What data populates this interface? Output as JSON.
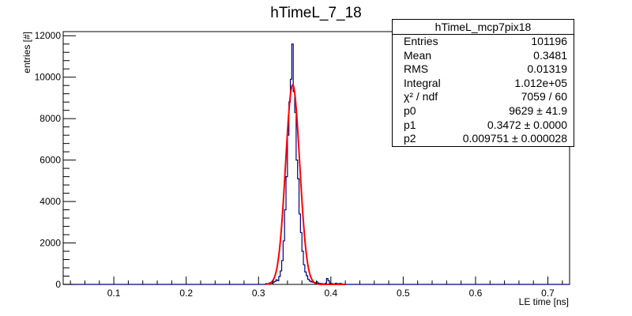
{
  "chart_data": {
    "type": "histogram",
    "title": "hTimeL_7_18",
    "xlabel": "LE time [ns]",
    "ylabel": "entries [#]",
    "xlim": [
      0.03,
      0.73
    ],
    "ylim": [
      0,
      12200
    ],
    "xticks": [
      0.1,
      0.2,
      0.3,
      0.4,
      0.5,
      0.6,
      0.7
    ],
    "xtick_labels": [
      "0.1",
      "0.2",
      "0.3",
      "0.4",
      "0.5",
      "0.6",
      "0.7"
    ],
    "yticks": [
      0,
      2000,
      4000,
      6000,
      8000,
      10000,
      12000
    ],
    "ytick_labels": [
      "0",
      "2000",
      "4000",
      "6000",
      "8000",
      "10000",
      "12000"
    ],
    "histogram": {
      "color": "#000080",
      "bins": [
        [
          0.31,
          0.312,
          40
        ],
        [
          0.312,
          0.314,
          30
        ],
        [
          0.314,
          0.316,
          60
        ],
        [
          0.316,
          0.318,
          90
        ],
        [
          0.318,
          0.32,
          60
        ],
        [
          0.32,
          0.322,
          110
        ],
        [
          0.322,
          0.324,
          140
        ],
        [
          0.324,
          0.326,
          220
        ],
        [
          0.326,
          0.328,
          180
        ],
        [
          0.328,
          0.33,
          380
        ],
        [
          0.33,
          0.332,
          650
        ],
        [
          0.332,
          0.334,
          1150
        ],
        [
          0.334,
          0.336,
          2100
        ],
        [
          0.336,
          0.338,
          3600
        ],
        [
          0.338,
          0.34,
          5200
        ],
        [
          0.34,
          0.342,
          7200
        ],
        [
          0.342,
          0.344,
          8800
        ],
        [
          0.344,
          0.346,
          9900
        ],
        [
          0.346,
          0.348,
          11600
        ],
        [
          0.348,
          0.35,
          9300
        ],
        [
          0.35,
          0.352,
          8300
        ],
        [
          0.352,
          0.354,
          6000
        ],
        [
          0.354,
          0.356,
          5100
        ],
        [
          0.356,
          0.358,
          3400
        ],
        [
          0.358,
          0.36,
          2500
        ],
        [
          0.36,
          0.362,
          1600
        ],
        [
          0.362,
          0.364,
          950
        ],
        [
          0.364,
          0.366,
          600
        ],
        [
          0.366,
          0.368,
          420
        ],
        [
          0.368,
          0.37,
          250
        ],
        [
          0.37,
          0.372,
          170
        ],
        [
          0.372,
          0.374,
          130
        ],
        [
          0.374,
          0.376,
          110
        ],
        [
          0.376,
          0.378,
          90
        ],
        [
          0.378,
          0.38,
          80
        ],
        [
          0.38,
          0.382,
          120
        ],
        [
          0.382,
          0.384,
          60
        ],
        [
          0.384,
          0.386,
          50
        ],
        [
          0.386,
          0.388,
          40
        ],
        [
          0.388,
          0.39,
          30
        ],
        [
          0.39,
          0.392,
          20
        ],
        [
          0.392,
          0.394,
          60
        ],
        [
          0.394,
          0.396,
          280
        ],
        [
          0.396,
          0.398,
          180
        ],
        [
          0.398,
          0.4,
          60
        ],
        [
          0.4,
          0.402,
          40
        ],
        [
          0.402,
          0.404,
          30
        ],
        [
          0.404,
          0.406,
          20
        ],
        [
          0.406,
          0.408,
          60
        ],
        [
          0.408,
          0.41,
          40
        ],
        [
          0.41,
          0.412,
          20
        ],
        [
          0.412,
          0.414,
          50
        ],
        [
          0.414,
          0.416,
          30
        ],
        [
          0.416,
          0.418,
          20
        ]
      ]
    },
    "fit": {
      "name": "gaus",
      "color": "#ff0000",
      "p0": 9629,
      "p1": 0.3472,
      "p2": 0.009751,
      "range": [
        0.31,
        0.42
      ]
    },
    "stats_box": {
      "title": "hTimeL_mcp7pix18",
      "rows": [
        {
          "label": "Entries",
          "value": "101196"
        },
        {
          "label": "Mean",
          "value": "0.3481"
        },
        {
          "label": "RMS",
          "value": "0.01319"
        },
        {
          "label": "Integral",
          "value": "1.012e+05"
        },
        {
          "label": "χ² / ndf",
          "value": "7059 / 60"
        },
        {
          "label": "p0",
          "value": "9629 ± 41.9"
        },
        {
          "label": "p1",
          "value": "0.3472 ± 0.0000"
        },
        {
          "label": "p2",
          "value": "0.009751 ± 0.000028"
        }
      ]
    }
  }
}
